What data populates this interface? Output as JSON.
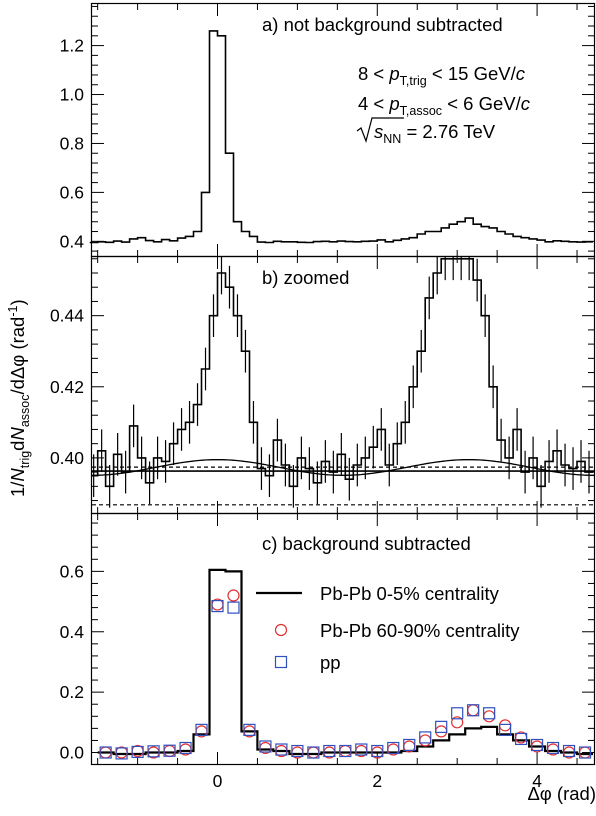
{
  "chart_data": [
    {
      "panel": "a",
      "type": "line",
      "step": true,
      "title": "a) not background subtracted",
      "annotations": [
        {
          "parts": [
            "8 < ",
            "p",
            "T,trig",
            " < 15 GeV/",
            "c"
          ]
        },
        {
          "parts": [
            "4 < ",
            "p",
            "T,assoc",
            " < 6 GeV/",
            "c"
          ]
        },
        {
          "parts": [
            "s",
            "NN",
            " = 2.76 TeV"
          ]
        }
      ],
      "xlim": [
        -1.5708,
        4.7124
      ],
      "ylim": [
        0.34,
        1.37
      ],
      "yticks": [
        0.4,
        0.6,
        0.8,
        1.0,
        1.2
      ],
      "ytick_labels": [
        "0.4",
        "0.6",
        "0.8",
        "1.0",
        "1.2"
      ],
      "series": [
        {
          "x": [
            -1.55,
            -1.45,
            -1.35,
            -1.25,
            -1.15,
            -1.05,
            -0.95,
            -0.85,
            -0.75,
            -0.65,
            -0.55,
            -0.45,
            -0.35,
            -0.25,
            -0.15,
            -0.05,
            0.05,
            0.15,
            0.25,
            0.35,
            0.45,
            0.55,
            0.65,
            0.75,
            0.85,
            0.95,
            1.05,
            1.15,
            1.25,
            1.35,
            1.45,
            1.55,
            1.65,
            1.75,
            1.85,
            1.95,
            2.05,
            2.15,
            2.25,
            2.35,
            2.45,
            2.55,
            2.65,
            2.75,
            2.85,
            2.95,
            3.05,
            3.15,
            3.25,
            3.35,
            3.45,
            3.55,
            3.65,
            3.75,
            3.85,
            3.95,
            4.05,
            4.15,
            4.25,
            4.35,
            4.45,
            4.55,
            4.65
          ],
          "values": [
            0.395,
            0.398,
            0.396,
            0.401,
            0.397,
            0.41,
            0.415,
            0.403,
            0.398,
            0.407,
            0.402,
            0.413,
            0.42,
            0.44,
            0.6,
            1.26,
            1.24,
            0.76,
            0.48,
            0.44,
            0.42,
            0.397,
            0.395,
            0.4,
            0.398,
            0.398,
            0.396,
            0.395,
            0.399,
            0.4,
            0.398,
            0.401,
            0.399,
            0.398,
            0.4,
            0.401,
            0.406,
            0.398,
            0.404,
            0.41,
            0.415,
            0.43,
            0.44,
            0.44,
            0.455,
            0.47,
            0.48,
            0.495,
            0.47,
            0.46,
            0.455,
            0.44,
            0.43,
            0.42,
            0.415,
            0.41,
            0.405,
            0.398,
            0.402,
            0.4,
            0.398,
            0.397,
            0.398
          ]
        }
      ]
    },
    {
      "panel": "b",
      "type": "line",
      "step": true,
      "title": "b) zoomed",
      "ylabel": "1/N_trig dN_assoc/dΔφ (rad^-1)",
      "ylabel_parts": [
        "1/",
        "N",
        "trig",
        "d",
        "N",
        "assoc",
        "/dΔφ (rad",
        "-1",
        ")"
      ],
      "xlim": [
        -1.5708,
        4.7124
      ],
      "ylim": [
        0.3845,
        0.4565
      ],
      "yticks": [
        0.4,
        0.42,
        0.44
      ],
      "ytick_labels": [
        "0.40",
        "0.42",
        "0.44"
      ],
      "series": [
        {
          "x": [
            -1.55,
            -1.45,
            -1.35,
            -1.25,
            -1.15,
            -1.05,
            -0.95,
            -0.85,
            -0.75,
            -0.65,
            -0.55,
            -0.45,
            -0.35,
            -0.25,
            -0.15,
            -0.05,
            0.05,
            0.15,
            0.25,
            0.35,
            0.45,
            0.55,
            0.65,
            0.75,
            0.85,
            0.95,
            1.05,
            1.15,
            1.25,
            1.35,
            1.45,
            1.55,
            1.65,
            1.75,
            1.85,
            1.95,
            2.05,
            2.15,
            2.25,
            2.35,
            2.45,
            2.55,
            2.65,
            2.75,
            2.85,
            2.95,
            3.05,
            3.15,
            3.25,
            3.35,
            3.45,
            3.55,
            3.65,
            3.75,
            3.85,
            3.95,
            4.05,
            4.15,
            4.25,
            4.35,
            4.45,
            4.55,
            4.65
          ],
          "values": [
            0.395,
            0.402,
            0.392,
            0.401,
            0.396,
            0.409,
            0.4,
            0.393,
            0.4,
            0.399,
            0.404,
            0.408,
            0.41,
            0.415,
            0.425,
            0.44,
            0.452,
            0.448,
            0.44,
            0.43,
            0.41,
            0.397,
            0.395,
            0.405,
            0.398,
            0.392,
            0.4,
            0.397,
            0.393,
            0.399,
            0.396,
            0.401,
            0.394,
            0.398,
            0.4,
            0.403,
            0.408,
            0.398,
            0.404,
            0.41,
            0.42,
            0.43,
            0.445,
            0.452,
            0.456,
            0.456,
            0.456,
            0.456,
            0.45,
            0.44,
            0.42,
            0.405,
            0.4,
            0.408,
            0.396,
            0.4,
            0.392,
            0.399,
            0.402,
            0.398,
            0.397,
            0.399,
            0.396
          ],
          "errors": [
            0.006,
            0.006,
            0.006,
            0.006,
            0.006,
            0.006,
            0.006,
            0.006,
            0.006,
            0.006,
            0.006,
            0.006,
            0.006,
            0.006,
            0.006,
            0.006,
            0.006,
            0.006,
            0.006,
            0.006,
            0.006,
            0.006,
            0.006,
            0.006,
            0.006,
            0.006,
            0.006,
            0.006,
            0.006,
            0.006,
            0.006,
            0.006,
            0.006,
            0.006,
            0.006,
            0.006,
            0.006,
            0.006,
            0.006,
            0.006,
            0.006,
            0.006,
            0.006,
            0.006,
            0.006,
            0.006,
            0.006,
            0.006,
            0.006,
            0.006,
            0.006,
            0.006,
            0.006,
            0.006,
            0.006,
            0.006,
            0.006,
            0.006,
            0.006,
            0.006,
            0.006,
            0.006,
            0.006
          ]
        },
        {
          "x": [
            -1.5708,
            4.7124
          ],
          "values": [
            0.3963,
            0.3963
          ]
        },
        {
          "x": [
            -1.5708,
            4.7124
          ],
          "values": [
            0.3974,
            0.3974
          ]
        },
        {
          "x": [
            -1.5708,
            4.7124
          ],
          "values": [
            0.3868,
            0.3868
          ]
        },
        {
          "mean": 0.3973,
          "amplitude": 0.0022
        }
      ]
    },
    {
      "panel": "c",
      "type": "scatter",
      "title": "c) background subtracted",
      "xlabel": "Δφ (rad)",
      "xlim": [
        -1.5708,
        4.7124
      ],
      "ylim": [
        -0.038,
        0.79
      ],
      "xticks": [
        0,
        2,
        4
      ],
      "xtick_labels": [
        "0",
        "2",
        "4"
      ],
      "yticks": [
        0.0,
        0.2,
        0.4,
        0.6
      ],
      "ytick_labels": [
        "0.0",
        "0.2",
        "0.4",
        "0.6"
      ],
      "legend_position": "upper-right",
      "series": [
        {
          "name": "Pb-Pb 0-5% centrality",
          "color": "#000000",
          "marker": "line",
          "x": [
            -1.4,
            -1.2,
            -1.0,
            -0.8,
            -0.6,
            -0.4,
            -0.2,
            0.0,
            0.2,
            0.4,
            0.6,
            0.8,
            1.0,
            1.2,
            1.4,
            1.6,
            1.8,
            2.0,
            2.2,
            2.4,
            2.6,
            2.8,
            3.0,
            3.2,
            3.4,
            3.6,
            3.8,
            4.0,
            4.2,
            4.4,
            4.6
          ],
          "values": [
            0.0,
            -0.005,
            -0.005,
            0.0,
            0.0,
            0.005,
            0.06,
            0.605,
            0.6,
            0.07,
            0.01,
            0.005,
            -0.005,
            -0.005,
            0.0,
            0.0,
            0.0,
            0.0,
            0.0,
            0.005,
            0.02,
            0.04,
            0.06,
            0.08,
            0.085,
            0.06,
            0.04,
            0.02,
            0.005,
            0.0,
            -0.005
          ]
        },
        {
          "name": "Pb-Pb 60-90% centrality",
          "color": "#e03030",
          "marker": "circle",
          "x": [
            -1.4,
            -1.2,
            -1.0,
            -0.8,
            -0.6,
            -0.4,
            -0.2,
            0.0,
            0.2,
            0.4,
            0.6,
            0.8,
            1.0,
            1.2,
            1.4,
            1.6,
            1.8,
            2.0,
            2.2,
            2.4,
            2.6,
            2.8,
            3.0,
            3.2,
            3.4,
            3.6,
            3.8,
            4.0,
            4.2,
            4.4,
            4.6
          ],
          "values": [
            0.0,
            0.0,
            0.005,
            0.0,
            0.005,
            0.01,
            0.07,
            0.49,
            0.52,
            0.07,
            0.015,
            0.005,
            0.0,
            0.0,
            0.0,
            0.005,
            0.005,
            0.0,
            0.01,
            0.02,
            0.04,
            0.07,
            0.1,
            0.14,
            0.12,
            0.09,
            0.05,
            0.02,
            0.01,
            0.0,
            0.0
          ]
        },
        {
          "name": "pp",
          "color": "#3050c0",
          "marker": "square",
          "x": [
            -1.4,
            -1.2,
            -1.0,
            -0.8,
            -0.6,
            -0.4,
            -0.2,
            0.0,
            0.2,
            0.4,
            0.6,
            0.8,
            1.0,
            1.2,
            1.4,
            1.6,
            1.8,
            2.0,
            2.2,
            2.4,
            2.6,
            2.8,
            3.0,
            3.2,
            3.4,
            3.6,
            3.8,
            4.0,
            4.2,
            4.4,
            4.6
          ],
          "values": [
            0.0,
            -0.003,
            0.002,
            0.004,
            0.006,
            0.015,
            0.075,
            0.485,
            0.48,
            0.075,
            0.02,
            0.01,
            0.005,
            0.0,
            0.005,
            0.005,
            0.01,
            0.005,
            0.015,
            0.025,
            0.05,
            0.085,
            0.13,
            0.14,
            0.13,
            0.075,
            0.045,
            0.025,
            0.015,
            0.005,
            0.0
          ]
        }
      ]
    }
  ]
}
